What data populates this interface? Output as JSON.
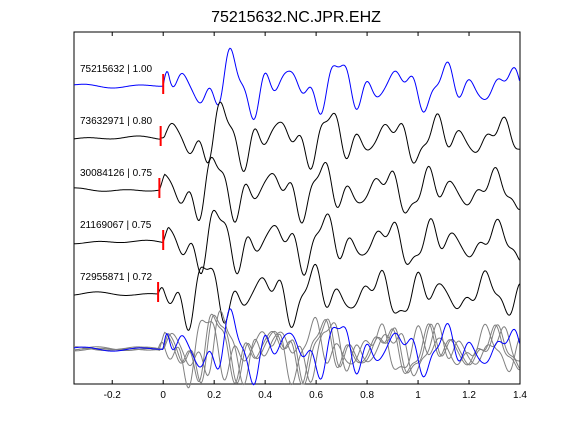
{
  "title": "75215632.NC.JPR.EHZ",
  "chart_data": {
    "type": "line",
    "title": "75215632.NC.JPR.EHZ",
    "xlabel": "",
    "ylabel": "",
    "xlim": [
      -0.35,
      1.4
    ],
    "xticks": [
      -0.2,
      0,
      0.2,
      0.4,
      0.6,
      0.8,
      1,
      1.2,
      1.4
    ],
    "xtick_labels": [
      "-0.2",
      "0",
      "0.2",
      "0.4",
      "0.6",
      "0.8",
      "1",
      "1.2",
      "1.4"
    ],
    "grid": false,
    "pick_time": 0,
    "pick_color": "#ff0000",
    "overlay_row_label": "",
    "series": [
      {
        "name": "75215632 | 1.00",
        "color": "#0000ff",
        "pick_offset": 0.0,
        "seed": 11,
        "corr": 1.0
      },
      {
        "name": "73632971 | 0.80",
        "color": "#000000",
        "pick_offset": -0.01,
        "seed": 23,
        "corr": 0.8
      },
      {
        "name": "30084126 | 0.75",
        "color": "#000000",
        "pick_offset": -0.015,
        "seed": 37,
        "corr": 0.75
      },
      {
        "name": "21169067 | 0.75",
        "color": "#000000",
        "pick_offset": 0.0,
        "seed": 41,
        "corr": 0.75
      },
      {
        "name": "72955871 | 0.72",
        "color": "#000000",
        "pick_offset": -0.02,
        "seed": 53,
        "corr": 0.72
      }
    ],
    "overlay_colors": [
      "#0000ff",
      "#808080",
      "#808080",
      "#808080",
      "#808080"
    ]
  }
}
